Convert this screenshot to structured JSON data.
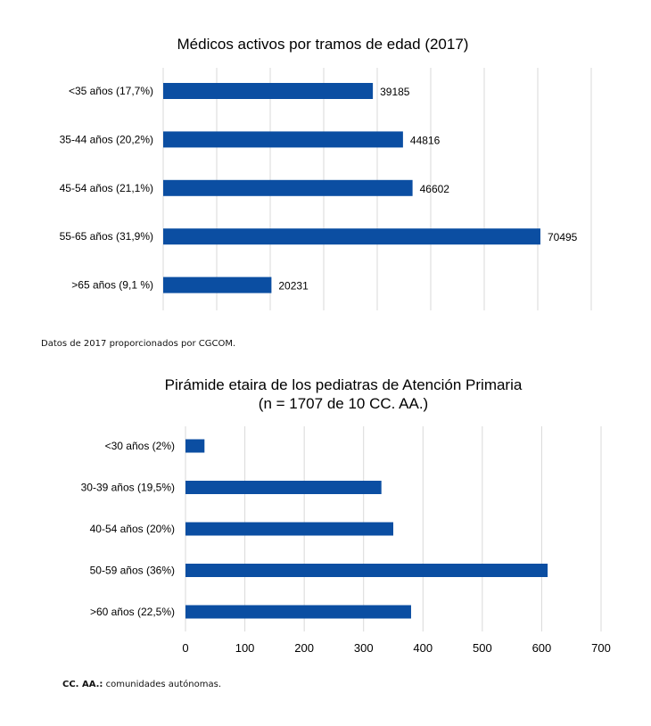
{
  "chart_data": [
    {
      "type": "bar",
      "orientation": "horizontal",
      "title": "Médicos activos por tramos de edad (2017)",
      "categories": [
        "<35 años (17,7%)",
        "35-44 años (20,2%)",
        "45-54 años (21,1%)",
        "55-65 años (31,9%)",
        ">65 años (9,1 %)"
      ],
      "values": [
        39185,
        44816,
        46602,
        70495,
        20231
      ],
      "data_labels": [
        "39185",
        "44816",
        "46602",
        "70495",
        "20231"
      ],
      "xlim": [
        0,
        80000
      ],
      "x_tick_step": 10000,
      "show_x_tick_labels": false,
      "grid": true,
      "bar_color": "#0b4ea2",
      "grid_color": "#d9d9d9"
    },
    {
      "type": "bar",
      "orientation": "horizontal",
      "title": "Pirámide etaira de los pediatras de Atención Primaria",
      "subtitle": "(n = 1707 de 10 CC. AA.)",
      "categories": [
        "<30 años (2%)",
        "30-39 años (19,5%)",
        "40-54 años (20%)",
        "50-59 años (36%)",
        ">60 años (22,5%)"
      ],
      "values": [
        32,
        330,
        350,
        610,
        380
      ],
      "xlim": [
        0,
        700
      ],
      "x_ticks": [
        "0",
        "100",
        "200",
        "300",
        "400",
        "500",
        "600",
        "700"
      ],
      "grid": true,
      "bar_color": "#0b4ea2",
      "grid_color": "#d9d9d9"
    }
  ],
  "notes": {
    "source": "Datos de 2017 proporcionados por CGCOM.",
    "abbr_term": "CC. AA.:",
    "abbr_text": " comunidades autónomas."
  }
}
